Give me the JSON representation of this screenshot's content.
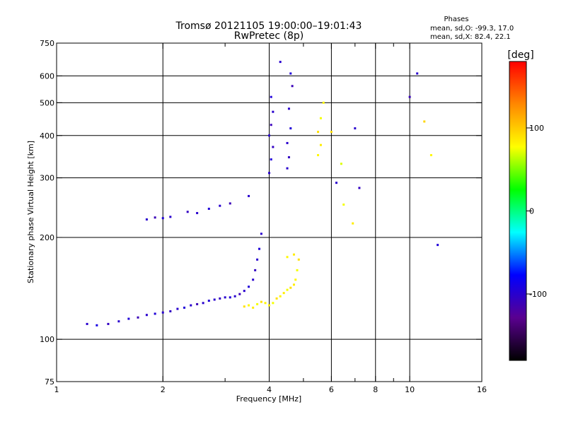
{
  "chart_data": {
    "type": "scatter",
    "title": "Tromsø 20121105 19:00:00–19:01:43",
    "subtitle": "RwPretec (8p)",
    "xlabel": "Frequency [MHz]",
    "ylabel": "Stationary phase Virtual Height [km]",
    "x_scale": "log",
    "y_scale": "log",
    "xlim": [
      1,
      16
    ],
    "ylim": [
      75,
      750
    ],
    "x_ticks": [
      1,
      2,
      4,
      6,
      8,
      10,
      16
    ],
    "x_tick_labels": [
      "1",
      "2",
      "4",
      "6",
      "8",
      "10",
      "16"
    ],
    "x_grid": [
      2,
      4,
      6,
      8,
      10
    ],
    "x_minor_ticks": [
      3,
      5,
      7,
      9
    ],
    "y_ticks": [
      75,
      100,
      200,
      300,
      400,
      500,
      600,
      750
    ],
    "y_tick_labels": [
      "75",
      "100",
      "200",
      "300",
      "400",
      "500",
      "600",
      "750"
    ],
    "y_grid": [
      100,
      200,
      300,
      400,
      500,
      600
    ],
    "grid": true,
    "color_scale": {
      "label": "[deg]",
      "range": [
        -180,
        180
      ],
      "tick_values": [
        100,
        0,
        -100
      ],
      "tick_labels": [
        "100",
        "0",
        "-100"
      ],
      "colormap": [
        "#000000",
        "#5a0090",
        "#0000ff",
        "#00ffff",
        "#00ff00",
        "#ffff00",
        "#ff8800",
        "#ff0000"
      ]
    },
    "stats": {
      "heading": "Phases",
      "line1": "mean, sd,O: -99.3, 17.0",
      "line2": "mean, sd,X:  82.4, 22.1"
    },
    "series": [
      {
        "name": "O",
        "points": [
          [
            1.22,
            111,
            -100
          ],
          [
            1.3,
            110,
            -90
          ],
          [
            1.4,
            111,
            -105
          ],
          [
            1.5,
            113,
            -100
          ],
          [
            1.6,
            115,
            -95
          ],
          [
            1.7,
            116,
            -110
          ],
          [
            1.8,
            118,
            -100
          ],
          [
            1.9,
            119,
            -95
          ],
          [
            2.0,
            120,
            -100
          ],
          [
            2.1,
            121,
            -105
          ],
          [
            2.2,
            123,
            -100
          ],
          [
            2.3,
            124,
            -95
          ],
          [
            2.4,
            126,
            -100
          ],
          [
            2.5,
            127,
            -110
          ],
          [
            2.6,
            128,
            -100
          ],
          [
            2.7,
            130,
            -95
          ],
          [
            2.8,
            131,
            -100
          ],
          [
            2.9,
            132,
            -105
          ],
          [
            3.0,
            133,
            -100
          ],
          [
            3.1,
            133,
            -95
          ],
          [
            3.2,
            134,
            -100
          ],
          [
            3.3,
            136,
            -110
          ],
          [
            3.4,
            139,
            -100
          ],
          [
            3.5,
            143,
            -95
          ],
          [
            3.6,
            150,
            -100
          ],
          [
            3.65,
            160,
            -105
          ],
          [
            3.7,
            172,
            -100
          ],
          [
            3.75,
            185,
            -95
          ],
          [
            3.8,
            205,
            -100
          ],
          [
            1.8,
            226,
            -100
          ],
          [
            1.9,
            229,
            -110
          ],
          [
            2.0,
            228,
            -95
          ],
          [
            2.1,
            230,
            -100
          ],
          [
            2.35,
            238,
            -105
          ],
          [
            2.5,
            236,
            -100
          ],
          [
            2.7,
            243,
            -95
          ],
          [
            2.9,
            248,
            -100
          ],
          [
            3.1,
            252,
            -110
          ],
          [
            3.5,
            265,
            -100
          ],
          [
            4.0,
            310,
            -100
          ],
          [
            4.05,
            340,
            -95
          ],
          [
            4.1,
            370,
            -105
          ],
          [
            4.0,
            400,
            -100
          ],
          [
            4.05,
            430,
            -110
          ],
          [
            4.1,
            470,
            -100
          ],
          [
            4.05,
            520,
            -95
          ],
          [
            4.5,
            320,
            -100
          ],
          [
            4.55,
            345,
            -105
          ],
          [
            4.5,
            380,
            -100
          ],
          [
            4.6,
            420,
            -95
          ],
          [
            4.55,
            480,
            -100
          ],
          [
            4.65,
            560,
            -110
          ],
          [
            4.3,
            660,
            -100
          ],
          [
            4.6,
            610,
            -95
          ],
          [
            6.2,
            290,
            -100
          ],
          [
            7.2,
            280,
            -105
          ],
          [
            7.0,
            420,
            -100
          ],
          [
            10.0,
            520,
            -110
          ],
          [
            10.5,
            610,
            -100
          ],
          [
            12.0,
            190,
            -95
          ]
        ]
      },
      {
        "name": "X",
        "points": [
          [
            3.4,
            125,
            90
          ],
          [
            3.5,
            126,
            80
          ],
          [
            3.6,
            124,
            85
          ],
          [
            3.7,
            127,
            75
          ],
          [
            3.8,
            129,
            90
          ],
          [
            3.9,
            128,
            80
          ],
          [
            4.0,
            126,
            85
          ],
          [
            4.1,
            128,
            75
          ],
          [
            4.2,
            132,
            90
          ],
          [
            4.3,
            134,
            80
          ],
          [
            4.4,
            137,
            85
          ],
          [
            4.5,
            140,
            75
          ],
          [
            4.6,
            142,
            90
          ],
          [
            4.7,
            145,
            85
          ],
          [
            4.75,
            150,
            80
          ],
          [
            4.8,
            160,
            75
          ],
          [
            4.85,
            172,
            90
          ],
          [
            4.7,
            178,
            85
          ],
          [
            4.5,
            175,
            80
          ],
          [
            5.5,
            350,
            80
          ],
          [
            5.6,
            375,
            85
          ],
          [
            5.5,
            410,
            90
          ],
          [
            5.6,
            450,
            75
          ],
          [
            5.7,
            500,
            80
          ],
          [
            6.0,
            410,
            90
          ],
          [
            6.4,
            330,
            70
          ],
          [
            6.5,
            250,
            75
          ],
          [
            6.9,
            220,
            85
          ],
          [
            11.0,
            440,
            95
          ],
          [
            11.5,
            350,
            80
          ]
        ]
      }
    ]
  }
}
